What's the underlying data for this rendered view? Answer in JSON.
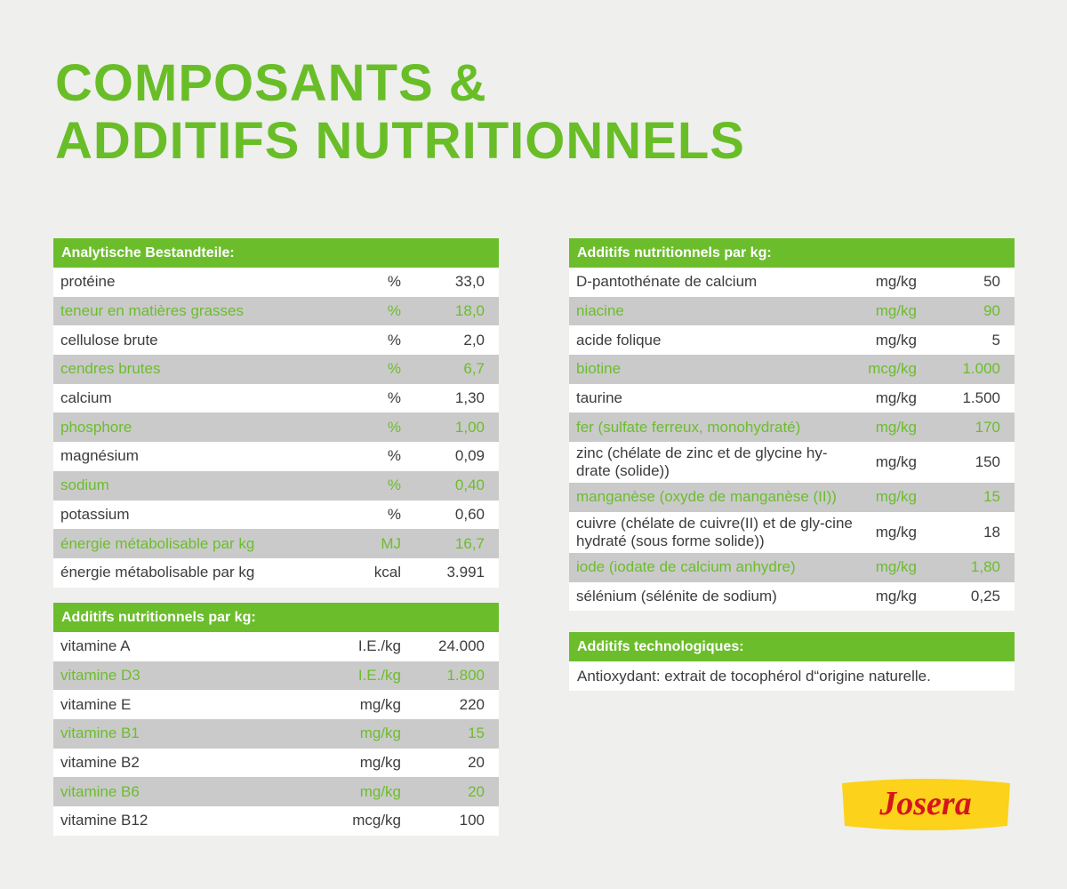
{
  "title": {
    "line1": "COMPOSANTS &",
    "line2": "ADDITIFS NUTRITIONNELS"
  },
  "analytic": {
    "header": "Analytische Bestandteile:",
    "rows": [
      {
        "name": "protéine",
        "unit": "%",
        "value": "33,0"
      },
      {
        "name": "teneur en matières grasses",
        "unit": "%",
        "value": "18,0"
      },
      {
        "name": "cellulose brute",
        "unit": "%",
        "value": "2,0"
      },
      {
        "name": "cendres brutes",
        "unit": "%",
        "value": "6,7"
      },
      {
        "name": "calcium",
        "unit": "%",
        "value": "1,30"
      },
      {
        "name": "phosphore",
        "unit": "%",
        "value": "1,00"
      },
      {
        "name": "magnésium",
        "unit": "%",
        "value": "0,09"
      },
      {
        "name": "sodium",
        "unit": "%",
        "value": "0,40"
      },
      {
        "name": "potassium",
        "unit": "%",
        "value": "0,60"
      },
      {
        "name": "énergie métabolisable par kg",
        "unit": "MJ",
        "value": "16,7"
      },
      {
        "name": "énergie métabolisable par kg",
        "unit": "kcal",
        "value": "3.991"
      }
    ]
  },
  "vitamins": {
    "header": "Additifs nutritionnels par kg:",
    "rows": [
      {
        "name": "vitamine A",
        "unit": "I.E./kg",
        "value": "24.000"
      },
      {
        "name": "vitamine D3",
        "unit": "I.E./kg",
        "value": "1.800"
      },
      {
        "name": "vitamine E",
        "unit": "mg/kg",
        "value": "220"
      },
      {
        "name": "vitamine B1",
        "unit": "mg/kg",
        "value": "15"
      },
      {
        "name": "vitamine B2",
        "unit": "mg/kg",
        "value": "20"
      },
      {
        "name": "vitamine B6",
        "unit": "mg/kg",
        "value": "20"
      },
      {
        "name": "vitamine B12",
        "unit": "mcg/kg",
        "value": "100"
      }
    ]
  },
  "minerals": {
    "header": "Additifs nutritionnels par kg:",
    "rows": [
      {
        "name": "D-pantothénate de calcium",
        "unit": "mg/kg",
        "value": "50"
      },
      {
        "name": "niacine",
        "unit": "mg/kg",
        "value": "90"
      },
      {
        "name": "acide folique",
        "unit": "mg/kg",
        "value": "5"
      },
      {
        "name": "biotine",
        "unit": "mcg/kg",
        "value": "1.000"
      },
      {
        "name": "taurine",
        "unit": "mg/kg",
        "value": "1.500"
      },
      {
        "name": "fer (sulfate ferreux, monohydraté)",
        "unit": "mg/kg",
        "value": "170"
      },
      {
        "name": "zinc (chélate de zinc et de glycine hy-drate (solide))",
        "unit": "mg/kg",
        "value": "150"
      },
      {
        "name": "manganèse (oxyde de manganèse (II))",
        "unit": "mg/kg",
        "value": "15"
      },
      {
        "name": "cuivre (chélate de cuivre(II) et de gly-cine hydraté (sous forme solide))",
        "unit": "mg/kg",
        "value": "18"
      },
      {
        "name": "iode (iodate de calcium anhydre)",
        "unit": "mg/kg",
        "value": "1,80"
      },
      {
        "name": "sélénium (sélénite de sodium)",
        "unit": "mg/kg",
        "value": "0,25"
      }
    ]
  },
  "technological": {
    "header": "Additifs technologiques:",
    "text": "Antioxydant: extrait de tocophérol d“origine naturelle."
  },
  "logo": {
    "text": "Josera",
    "colors": {
      "red": "#d5161c",
      "yellow": "#fcd21a"
    }
  },
  "colors": {
    "green": "#69be28",
    "row_gray": "#cacaca",
    "text": "#3c3c3c"
  }
}
